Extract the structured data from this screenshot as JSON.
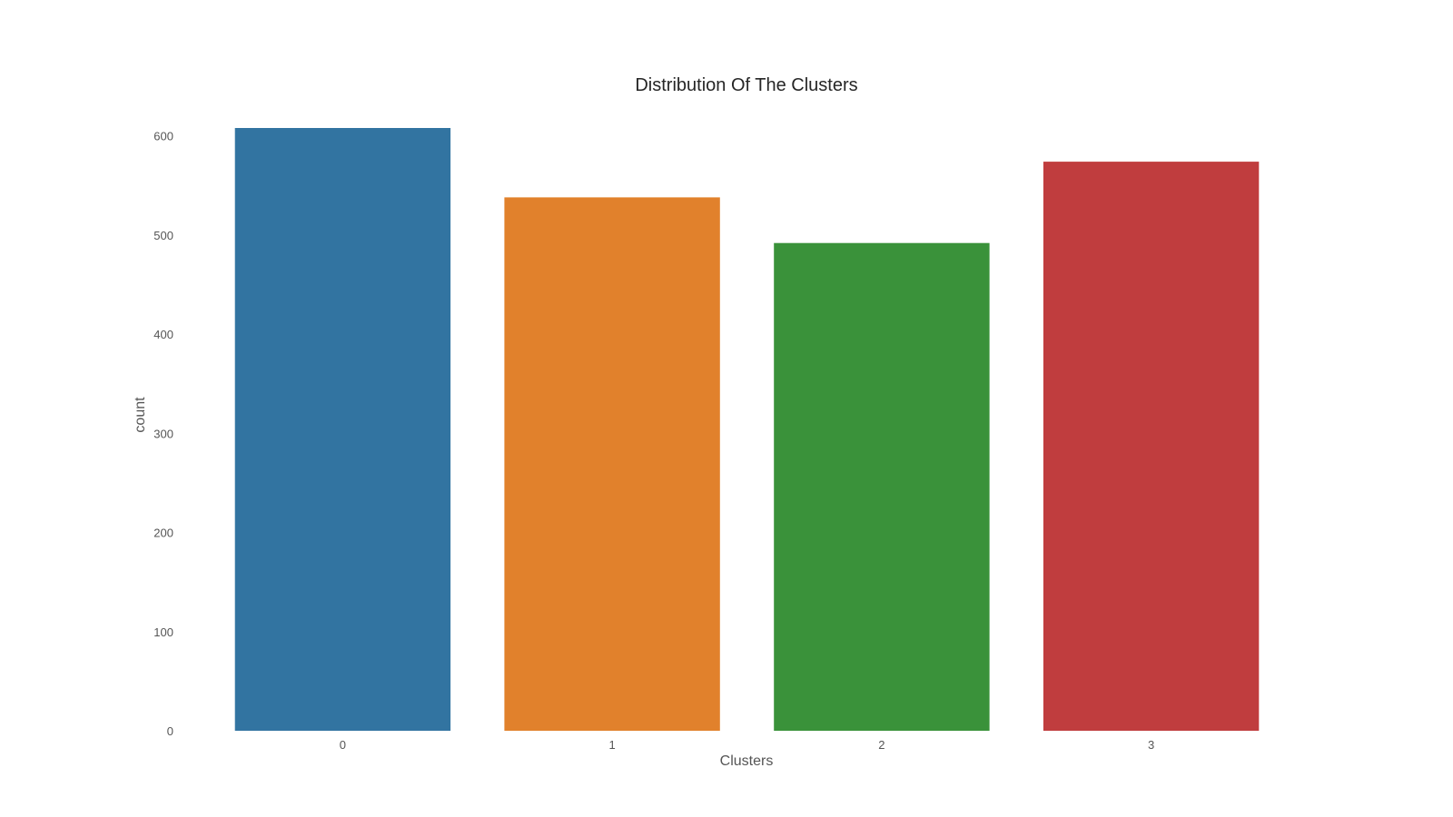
{
  "chart_data": {
    "type": "bar",
    "title": "Distribution Of The Clusters",
    "xlabel": "Clusters",
    "ylabel": "count",
    "categories": [
      "0",
      "1",
      "2",
      "3"
    ],
    "values": [
      608,
      538,
      492,
      574
    ],
    "colors": [
      "#3274a1",
      "#e1812c",
      "#3a923a",
      "#c03d3e"
    ],
    "ylim": [
      0,
      608
    ],
    "yticks": [
      0,
      100,
      200,
      300,
      400,
      500,
      600
    ],
    "grid": false,
    "legend": "none"
  }
}
